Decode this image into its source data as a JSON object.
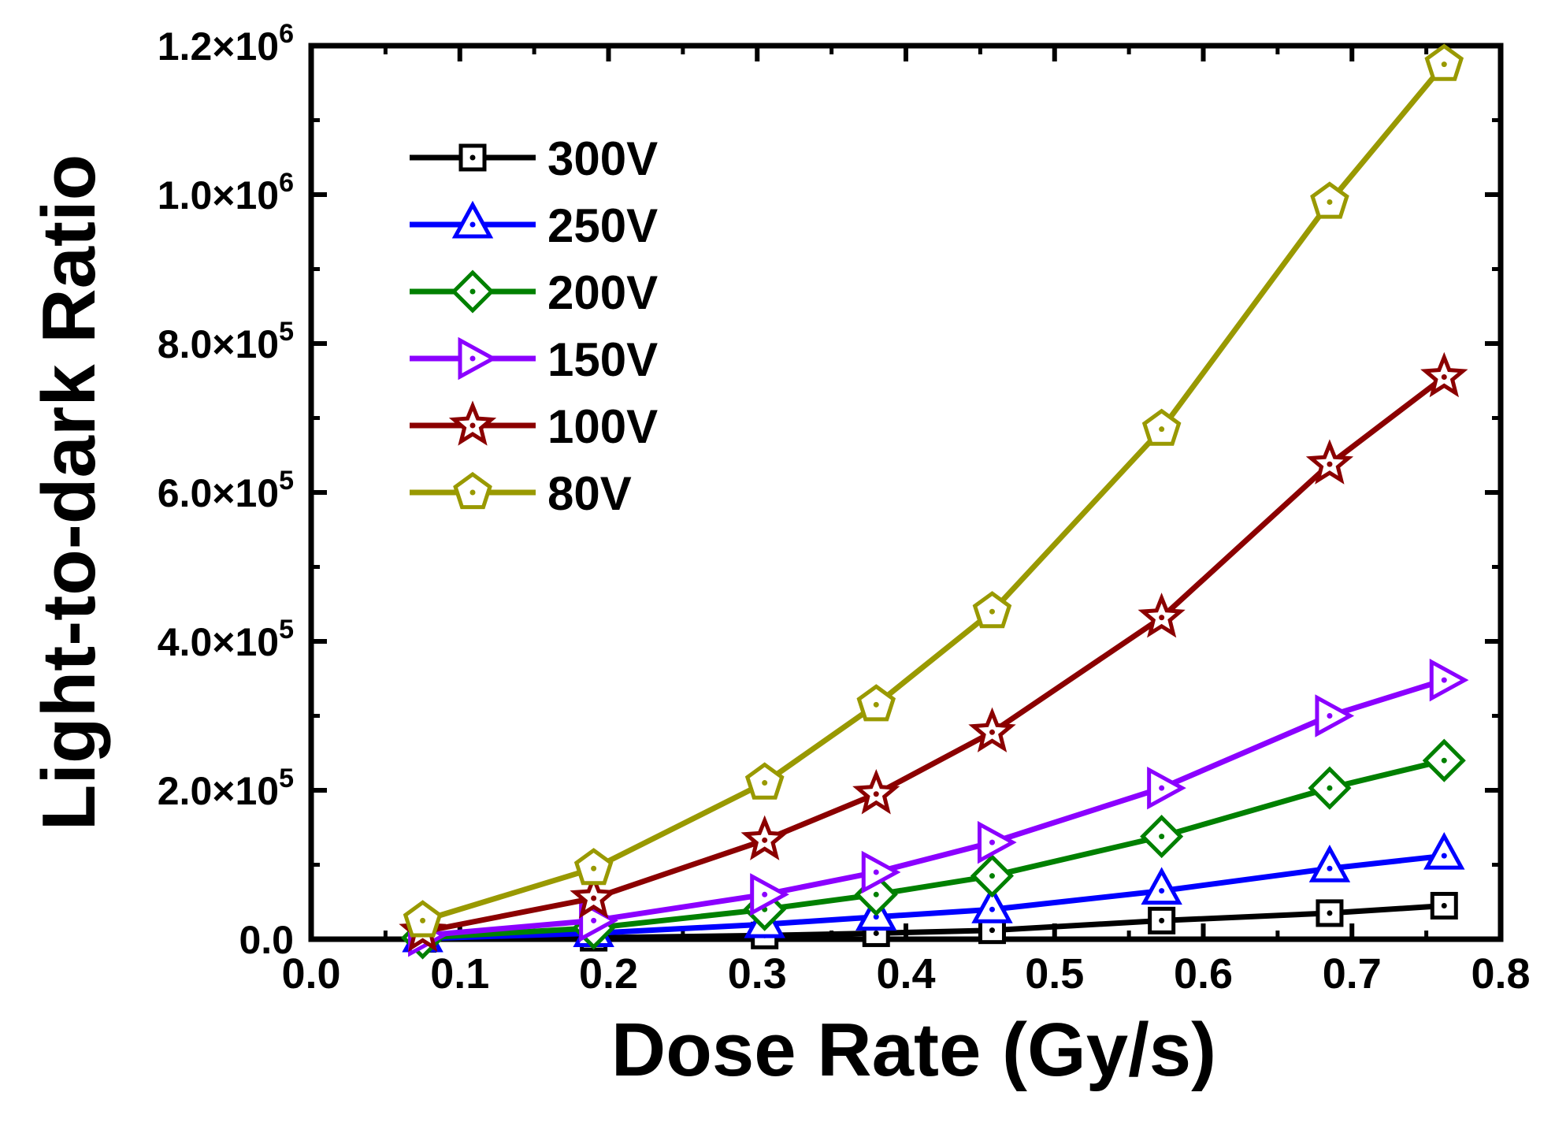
{
  "chart_data": {
    "type": "line",
    "xlabel": "Dose Rate (Gy/s)",
    "ylabel": "Light-to-dark Ratio",
    "xlim": [
      0.0,
      0.8
    ],
    "ylim": [
      0,
      1200000
    ],
    "x_ticks": [
      0.0,
      0.1,
      0.2,
      0.3,
      0.4,
      0.5,
      0.6,
      0.7,
      0.8
    ],
    "x_tick_labels": [
      "0.0",
      "0.1",
      "0.2",
      "0.3",
      "0.4",
      "0.5",
      "0.6",
      "0.7",
      "0.8"
    ],
    "y_ticks": [
      0,
      200000,
      400000,
      600000,
      800000,
      1000000,
      1200000
    ],
    "y_tick_labels": [
      {
        "mantissa": "0.0",
        "exponent": ""
      },
      {
        "mantissa": "2.0×10",
        "exponent": "5"
      },
      {
        "mantissa": "4.0×10",
        "exponent": "5"
      },
      {
        "mantissa": "6.0×10",
        "exponent": "5"
      },
      {
        "mantissa": "8.0×10",
        "exponent": "5"
      },
      {
        "mantissa": "1.0×10",
        "exponent": "6"
      },
      {
        "mantissa": "1.2×10",
        "exponent": "6"
      }
    ],
    "grid": false,
    "legend_position": "top-left",
    "x": [
      0.075,
      0.19,
      0.305,
      0.38,
      0.458,
      0.572,
      0.685,
      0.762
    ],
    "series": [
      {
        "name": "300V",
        "color": "#000000",
        "marker": "square",
        "values": [
          500,
          2000,
          5000,
          8000,
          12000,
          25000,
          35000,
          45000
        ]
      },
      {
        "name": "250V",
        "color": "#0000ff",
        "marker": "triangle-up",
        "values": [
          1000,
          8000,
          20000,
          30000,
          40000,
          65000,
          95000,
          112000
        ]
      },
      {
        "name": "200V",
        "color": "#008000",
        "marker": "diamond",
        "values": [
          2000,
          15000,
          40000,
          60000,
          85000,
          138000,
          203000,
          240000
        ]
      },
      {
        "name": "150V",
        "color": "#8b00ff",
        "marker": "triangle-right",
        "values": [
          5000,
          25000,
          60000,
          90000,
          130000,
          203000,
          300000,
          348000
        ]
      },
      {
        "name": "100V",
        "color": "#8b0000",
        "marker": "star",
        "values": [
          10000,
          55000,
          133000,
          195000,
          278000,
          432000,
          638000,
          755000
        ]
      },
      {
        "name": "80V",
        "color": "#999900",
        "marker": "pentagon",
        "values": [
          25000,
          95000,
          210000,
          315000,
          440000,
          685000,
          990000,
          1175000
        ]
      }
    ]
  }
}
